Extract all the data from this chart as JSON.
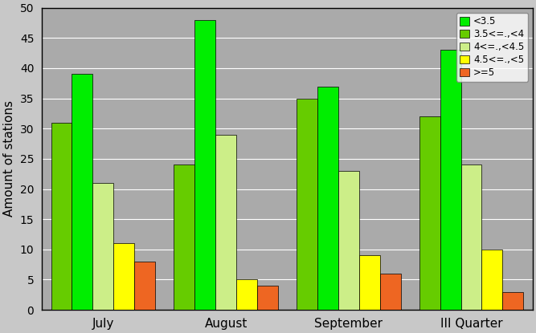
{
  "categories": [
    "July",
    "August",
    "September",
    "III Quarter"
  ],
  "series": [
    {
      "label": "3.5<=.,<4",
      "color": "#66cc00",
      "values": [
        31,
        24,
        35,
        32
      ]
    },
    {
      "label": "<3.5",
      "color": "#00ee00",
      "values": [
        39,
        48,
        37,
        43
      ]
    },
    {
      "label": "4<=.,<4.5",
      "color": "#ccee88",
      "values": [
        21,
        29,
        23,
        24
      ]
    },
    {
      "label": "4.5<=.,<5",
      "color": "#ffff00",
      "values": [
        11,
        5,
        9,
        10
      ]
    },
    {
      "label": ">=5",
      "color": "#ee6622",
      "values": [
        8,
        4,
        6,
        3
      ]
    }
  ],
  "legend_order": [
    1,
    0,
    2,
    3,
    4
  ],
  "legend_labels": [
    "<3.5",
    "3.5<=.,<4",
    "4<=.,<4.5",
    "4.5<=.,<5",
    ">=5"
  ],
  "legend_colors": [
    "#00ee00",
    "#66cc00",
    "#ccee88",
    "#ffff00",
    "#ee6622"
  ],
  "ylabel": "Amount of stations",
  "ylim": [
    0,
    50
  ],
  "yticks": [
    0,
    5,
    10,
    15,
    20,
    25,
    30,
    35,
    40,
    45,
    50
  ],
  "plot_bg": "#aaaaaa",
  "fig_bg": "#c8c8c8",
  "grid_color": "#ffffff",
  "bar_edge_color": "#000000",
  "bar_width": 0.17
}
